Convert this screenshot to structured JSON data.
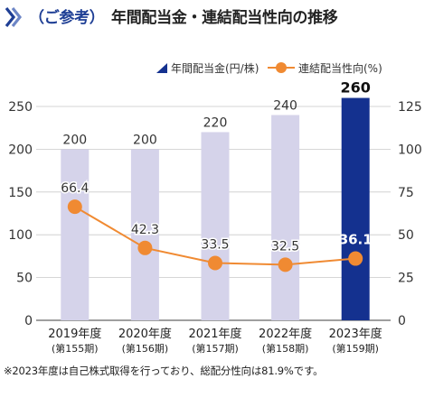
{
  "header": {
    "prefix": "（ご参考）",
    "title": "年間配当金・連結配当性向の推移",
    "mark_icon": "double-chevron-right-icon",
    "accent_color": "#1f3f95"
  },
  "chart_data": {
    "type": "bar",
    "categories": [
      "2019年度",
      "2020年度",
      "2021年度",
      "2022年度",
      "2023年度"
    ],
    "category_sublabels": [
      "(第155期)",
      "(第156期)",
      "(第157期)",
      "(第158期)",
      "(第159期)"
    ],
    "series": [
      {
        "name": "年間配当金(円/株)",
        "type": "bar",
        "axis": "left",
        "values": [
          200,
          200,
          220,
          240,
          260
        ],
        "labels": [
          "200",
          "200",
          "220",
          "240",
          "260"
        ],
        "color": "#d5d3ea",
        "highlight_color": "#14318f",
        "highlight_index": 4
      },
      {
        "name": "連結配当性向(%)",
        "type": "line",
        "axis": "right",
        "values": [
          66.4,
          42.3,
          33.5,
          32.5,
          36.1
        ],
        "labels": [
          "66.4",
          "42.3",
          "33.5",
          "32.5",
          "36.1"
        ],
        "color": "#f08a32"
      }
    ],
    "y_left": {
      "min": 0,
      "max": 250,
      "ticks": [
        0,
        50,
        100,
        150,
        200,
        250
      ]
    },
    "y_right": {
      "min": 0,
      "max": 125,
      "ticks": [
        0,
        25,
        50,
        75,
        100,
        125
      ]
    },
    "grid": true,
    "legend_position": "top-right"
  },
  "footnote": "※2023年度は自己株式取得を行っており、総配分性向は81.9%です。"
}
